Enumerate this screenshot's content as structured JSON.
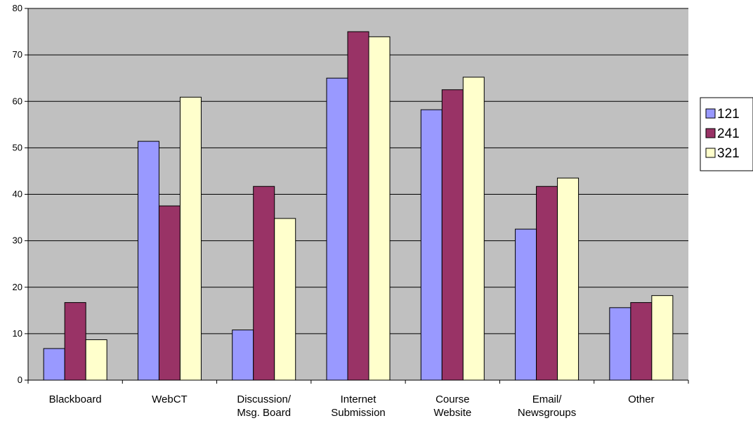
{
  "chart_data": {
    "type": "bar",
    "title": "",
    "xlabel": "",
    "ylabel": "",
    "ylim": [
      0,
      80
    ],
    "yticks": [
      0,
      10,
      20,
      30,
      40,
      50,
      60,
      70,
      80
    ],
    "grid": true,
    "legend_position": "right",
    "categories": [
      [
        "Blackboard"
      ],
      [
        "WebCT"
      ],
      [
        "Discussion/",
        "Msg. Board"
      ],
      [
        "Internet",
        "Submission"
      ],
      [
        "Course",
        "Website"
      ],
      [
        "Email/",
        "Newsgroups"
      ],
      [
        "Other"
      ]
    ],
    "series": [
      {
        "name": "121",
        "color": "#9999ff",
        "values": [
          6.8,
          51.4,
          10.8,
          65.0,
          58.2,
          32.5,
          15.6
        ]
      },
      {
        "name": "241",
        "color": "#993366",
        "values": [
          16.7,
          37.5,
          41.7,
          75.0,
          62.5,
          41.7,
          16.7
        ]
      },
      {
        "name": "321",
        "color": "#ffffcc",
        "values": [
          8.7,
          60.9,
          34.8,
          73.9,
          65.2,
          43.5,
          18.2
        ]
      }
    ],
    "plot_background": "#c0c0c0"
  }
}
